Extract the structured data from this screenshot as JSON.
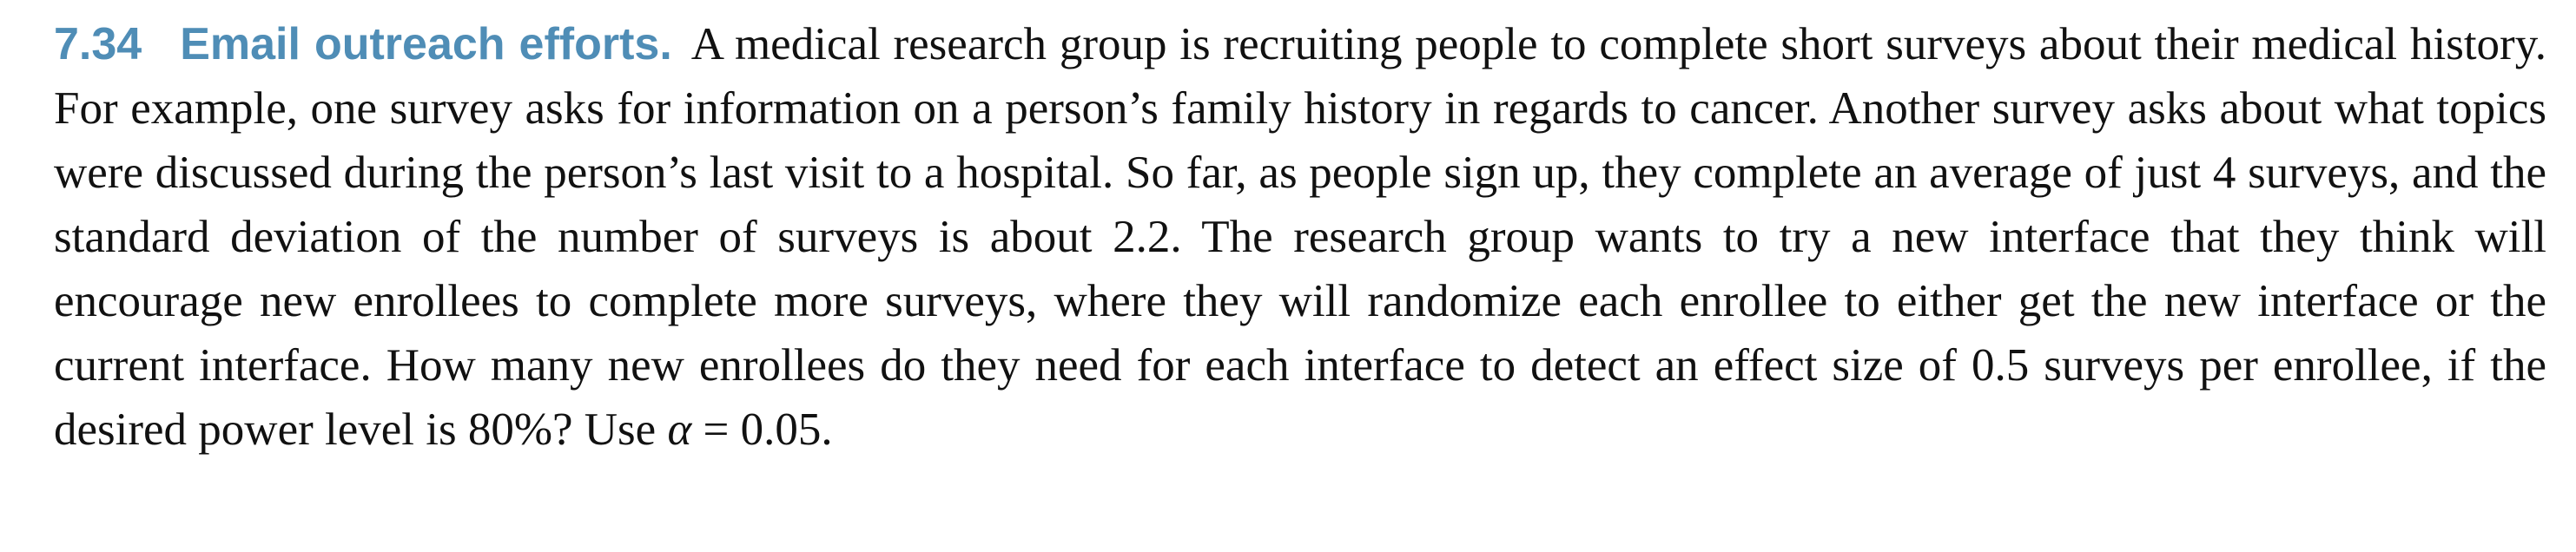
{
  "problem": {
    "number": "7.34",
    "title": "Email outreach efforts.",
    "body_before_alpha": "A medical research group is recruiting people to complete short surveys about their medical history. For example, one survey asks for information on a person’s family history in regards to cancer. Another survey asks about what topics were discussed during the person’s last visit to a hospital. So far, as people sign up, they complete an average of just 4 surveys, and the standard deviation of the number of surveys is about 2.2. The research group wants to try a new interface that they think will encourage new enrollees to complete more surveys, where they will randomize each enrollee to either get the new interface or the current interface. How many new enrollees do they need for each interface to detect an effect size of 0.5 surveys per enrollee, if the desired power level is 80%? Use",
    "alpha_symbol": "α",
    "alpha_rest": " = 0.05."
  },
  "colors": {
    "accent": "#4f8db6",
    "text": "#111111"
  }
}
